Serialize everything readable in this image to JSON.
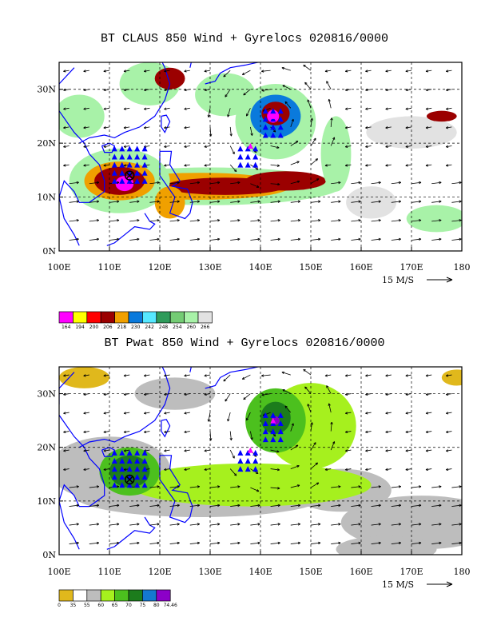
{
  "panel_top": {
    "title": "BT CLAUS 850 Wind + Gyrelocs 020816/0000",
    "colorbar_labels": [
      "164",
      "194",
      "200",
      "206",
      "218",
      "230",
      "242",
      "248",
      "254",
      "260",
      "266"
    ],
    "colorbar_colors": [
      "#ff00ff",
      "#ffff00",
      "#ff0000",
      "#9b0000",
      "#f0a000",
      "#0a7adc",
      "#56e8ff",
      "#2e9b5a",
      "#74cc74",
      "#a8f2a8",
      "#e2e2e2"
    ]
  },
  "panel_bottom": {
    "title": "BT Pwat 850 Wind + Gyrelocs 020816/0000",
    "colorbar_labels": [
      "0",
      "35",
      "55",
      "60",
      "65",
      "70",
      "75",
      "80",
      "74.46"
    ],
    "colorbar_colors": [
      "#e0b81c",
      "#ffffff",
      "#bdbdbd",
      "#a6f01e",
      "#4cc01e",
      "#1c7c1c",
      "#1478d0",
      "#8c00c8"
    ]
  },
  "map": {
    "lon_labels": [
      "100E",
      "110E",
      "120E",
      "130E",
      "140E",
      "150E",
      "160E",
      "170E",
      "180"
    ],
    "lat_labels": [
      "0N",
      "10N",
      "20N",
      "30N"
    ],
    "vector_scale_label": "15 M/S"
  },
  "colors": {
    "coast": "#0000ff",
    "marker_blue": "#0000ff",
    "marker_magenta": "#ff00ff"
  },
  "icons": {
    "gyre_center": "circled-x-icon",
    "gyre_loc": "triangle-icon"
  }
}
